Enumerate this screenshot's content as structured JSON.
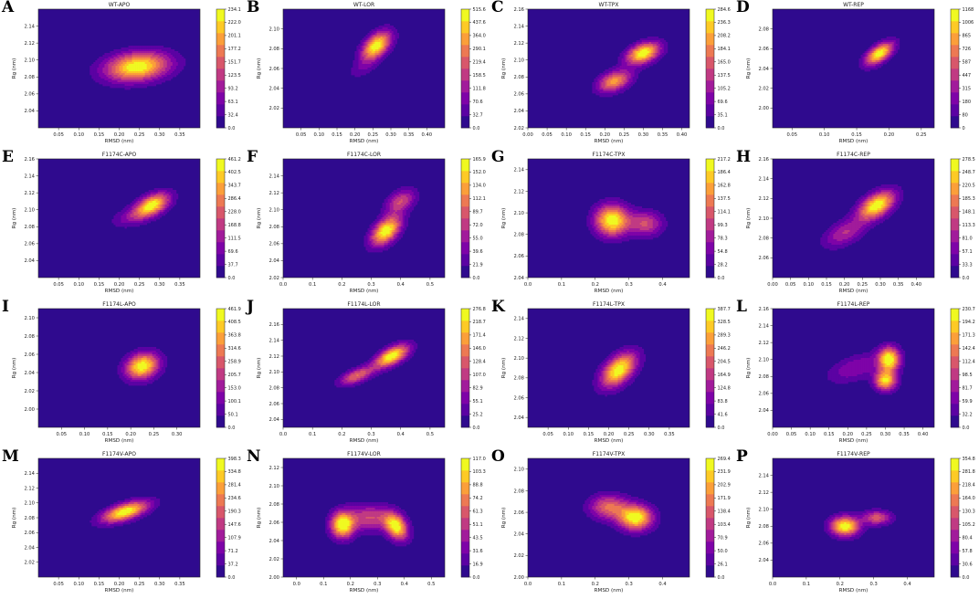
{
  "chart_data": [
    {
      "label": "A",
      "title": "WT-APO",
      "type": "heatmap",
      "xlabel": "RMSD (nm)",
      "ylabel": "Rg (nm)",
      "xlim": [
        0.0,
        0.4
      ],
      "ylim": [
        2.02,
        2.16
      ],
      "xticks": [
        "0.05",
        "0.10",
        "0.15",
        "0.20",
        "0.25",
        "0.30",
        "0.35"
      ],
      "yticks": [
        "2.04",
        "2.06",
        "2.08",
        "2.10",
        "2.12",
        "2.14"
      ],
      "colorbar": [
        "0.0",
        "32.4",
        "63.1",
        "93.2",
        "123.5",
        "151.7",
        "177.2",
        "201.1",
        "222.0",
        "234.1"
      ],
      "peaks": [
        {
          "x": 0.245,
          "y": 2.092,
          "sx": 0.055,
          "sy": 0.012,
          "h": 1.0,
          "r": 0.2
        }
      ]
    },
    {
      "label": "B",
      "title": "WT-LOR",
      "type": "heatmap",
      "xlabel": "RMSD (nm)",
      "ylabel": "Rg (nm)",
      "xlim": [
        0.0,
        0.45
      ],
      "ylim": [
        2.0,
        2.12
      ],
      "xticks": [
        "0.05",
        "0.10",
        "0.15",
        "0.20",
        "0.25",
        "0.30",
        "0.35",
        "0.40"
      ],
      "yticks": [
        "2.02",
        "2.04",
        "2.06",
        "2.08",
        "2.10"
      ],
      "colorbar": [
        "0.0",
        "32.7",
        "70.6",
        "111.8",
        "158.5",
        "219.4",
        "290.1",
        "364.0",
        "437.6",
        "515.6"
      ],
      "peaks": [
        {
          "x": 0.26,
          "y": 2.083,
          "sx": 0.028,
          "sy": 0.01,
          "h": 1.0,
          "r": 0.5
        },
        {
          "x": 0.22,
          "y": 2.06,
          "sx": 0.03,
          "sy": 0.008,
          "h": 0.15,
          "r": 0.5
        }
      ]
    },
    {
      "label": "C",
      "title": "WT-TPX",
      "type": "heatmap",
      "xlabel": "RMSD (nm)",
      "ylabel": "Rg (nm)",
      "xlim": [
        0.0,
        0.42
      ],
      "ylim": [
        2.02,
        2.16
      ],
      "xticks": [
        "0.00",
        "0.05",
        "0.10",
        "0.15",
        "0.20",
        "0.25",
        "0.30",
        "0.35",
        "0.40"
      ],
      "yticks": [
        "2.02",
        "2.04",
        "2.06",
        "2.08",
        "2.10",
        "2.12",
        "2.14",
        "2.16"
      ],
      "colorbar": [
        "0.0",
        "35.1",
        "69.6",
        "105.2",
        "137.5",
        "165.0",
        "184.1",
        "208.2",
        "236.3",
        "284.6"
      ],
      "peaks": [
        {
          "x": 0.3,
          "y": 2.108,
          "sx": 0.03,
          "sy": 0.009,
          "h": 1.0,
          "r": 0.4
        },
        {
          "x": 0.225,
          "y": 2.075,
          "sx": 0.03,
          "sy": 0.009,
          "h": 0.75,
          "r": 0.4
        }
      ]
    },
    {
      "label": "D",
      "title": "WT-REP",
      "type": "heatmap",
      "xlabel": "RMSD (nm)",
      "ylabel": "Rg (nm)",
      "xlim": [
        0.02,
        0.27
      ],
      "ylim": [
        1.98,
        2.1
      ],
      "xticks": [
        "0.05",
        "0.10",
        "0.15",
        "0.20",
        "0.25"
      ],
      "yticks": [
        "2.00",
        "2.02",
        "2.04",
        "2.06",
        "2.08"
      ],
      "colorbar": [
        "0",
        "80",
        "180",
        "315",
        "447",
        "587",
        "726",
        "865",
        "1006",
        "1168"
      ],
      "peaks": [
        {
          "x": 0.185,
          "y": 2.055,
          "sx": 0.015,
          "sy": 0.008,
          "h": 1.0,
          "r": 0.6
        }
      ]
    },
    {
      "label": "E",
      "title": "F1174C-APO",
      "type": "heatmap",
      "xlabel": "RMSD (nm)",
      "ylabel": "Rg (nm)",
      "xlim": [
        0.0,
        0.4
      ],
      "ylim": [
        2.02,
        2.16
      ],
      "xticks": [
        "0.05",
        "0.10",
        "0.15",
        "0.20",
        "0.25",
        "0.30",
        "0.35"
      ],
      "yticks": [
        "2.04",
        "2.06",
        "2.08",
        "2.10",
        "2.12",
        "2.14",
        "2.16"
      ],
      "colorbar": [
        "0.0",
        "37.7",
        "69.6",
        "111.5",
        "168.8",
        "228.0",
        "286.4",
        "343.7",
        "402.5",
        "461.2"
      ],
      "peaks": [
        {
          "x": 0.28,
          "y": 2.105,
          "sx": 0.03,
          "sy": 0.01,
          "h": 1.0,
          "r": 0.5
        },
        {
          "x": 0.22,
          "y": 2.09,
          "sx": 0.03,
          "sy": 0.008,
          "h": 0.2,
          "r": 0.3
        }
      ]
    },
    {
      "label": "F",
      "title": "F1174C-LOR",
      "type": "heatmap",
      "xlabel": "RMSD (nm)",
      "ylabel": "Rg (nm)",
      "xlim": [
        0.0,
        0.55
      ],
      "ylim": [
        2.02,
        2.16
      ],
      "xticks": [
        "0.0",
        "0.1",
        "0.2",
        "0.3",
        "0.4",
        "0.5"
      ],
      "yticks": [
        "2.02",
        "2.04",
        "2.06",
        "2.08",
        "2.10",
        "2.12",
        "2.14"
      ],
      "colorbar": [
        "0.0",
        "21.9",
        "39.6",
        "55.0",
        "72.0",
        "89.7",
        "112.1",
        "134.0",
        "152.0",
        "165.9"
      ],
      "peaks": [
        {
          "x": 0.35,
          "y": 2.075,
          "sx": 0.035,
          "sy": 0.012,
          "h": 1.0,
          "r": 0.5
        },
        {
          "x": 0.4,
          "y": 2.11,
          "sx": 0.035,
          "sy": 0.01,
          "h": 0.5,
          "r": 0.4
        }
      ]
    },
    {
      "label": "G",
      "title": "F1174C-TPX",
      "type": "heatmap",
      "xlabel": "RMSD (nm)",
      "ylabel": "Rg (nm)",
      "xlim": [
        0.0,
        0.48
      ],
      "ylim": [
        2.04,
        2.15
      ],
      "xticks": [
        "0.0",
        "0.1",
        "0.2",
        "0.3",
        "0.4"
      ],
      "yticks": [
        "2.04",
        "2.06",
        "2.08",
        "2.10",
        "2.12",
        "2.14"
      ],
      "colorbar": [
        "0.0",
        "28.2",
        "54.8",
        "78.3",
        "99.3",
        "114.1",
        "137.5",
        "162.8",
        "186.4",
        "217.2"
      ],
      "peaks": [
        {
          "x": 0.25,
          "y": 2.093,
          "sx": 0.035,
          "sy": 0.01,
          "h": 1.0,
          "r": 0.0
        },
        {
          "x": 0.35,
          "y": 2.09,
          "sx": 0.035,
          "sy": 0.008,
          "h": 0.5,
          "r": 0.0
        }
      ]
    },
    {
      "label": "H",
      "title": "F1174C-REP",
      "type": "heatmap",
      "xlabel": "RMSD (nm)",
      "ylabel": "Rg (nm)",
      "xlim": [
        0.0,
        0.45
      ],
      "ylim": [
        2.04,
        2.16
      ],
      "xticks": [
        "0.00",
        "0.05",
        "0.10",
        "0.15",
        "0.20",
        "0.25",
        "0.30",
        "0.35",
        "0.40"
      ],
      "yticks": [
        "2.06",
        "2.08",
        "2.10",
        "2.12",
        "2.14",
        "2.16"
      ],
      "colorbar": [
        "0.0",
        "33.3",
        "57.1",
        "81.0",
        "113.3",
        "148.1",
        "185.3",
        "220.5",
        "248.7",
        "278.5"
      ],
      "peaks": [
        {
          "x": 0.29,
          "y": 2.113,
          "sx": 0.035,
          "sy": 0.01,
          "h": 1.0,
          "r": 0.5
        },
        {
          "x": 0.2,
          "y": 2.085,
          "sx": 0.04,
          "sy": 0.01,
          "h": 0.4,
          "r": 0.5
        }
      ]
    },
    {
      "label": "I",
      "title": "F1174L-APO",
      "type": "heatmap",
      "xlabel": "RMSD (nm)",
      "ylabel": "Rg (nm)",
      "xlim": [
        0.0,
        0.35
      ],
      "ylim": [
        1.98,
        2.11
      ],
      "xticks": [
        "0.05",
        "0.10",
        "0.15",
        "0.20",
        "0.25",
        "0.30"
      ],
      "yticks": [
        "2.00",
        "2.02",
        "2.04",
        "2.06",
        "2.08",
        "2.10"
      ],
      "colorbar": [
        "0.0",
        "50.1",
        "100.1",
        "153.0",
        "205.7",
        "258.9",
        "314.6",
        "363.8",
        "408.5",
        "461.9"
      ],
      "peaks": [
        {
          "x": 0.225,
          "y": 2.047,
          "sx": 0.025,
          "sy": 0.01,
          "h": 1.0,
          "r": 0.2
        }
      ]
    },
    {
      "label": "J",
      "title": "F1174L-LOR",
      "type": "heatmap",
      "xlabel": "RMSD (nm)",
      "ylabel": "Rg (nm)",
      "xlim": [
        0.0,
        0.55
      ],
      "ylim": [
        2.03,
        2.18
      ],
      "xticks": [
        "0.0",
        "0.1",
        "0.2",
        "0.3",
        "0.4",
        "0.5"
      ],
      "yticks": [
        "2.04",
        "2.06",
        "2.08",
        "2.10",
        "2.12",
        "2.14",
        "2.16"
      ],
      "colorbar": [
        "0.0",
        "25.2",
        "55.1",
        "82.9",
        "107.0",
        "128.4",
        "146.0",
        "171.4",
        "218.7",
        "276.8"
      ],
      "peaks": [
        {
          "x": 0.37,
          "y": 2.12,
          "sx": 0.04,
          "sy": 0.01,
          "h": 1.0,
          "r": 0.6
        },
        {
          "x": 0.25,
          "y": 2.095,
          "sx": 0.04,
          "sy": 0.008,
          "h": 0.6,
          "r": 0.6
        }
      ]
    },
    {
      "label": "K",
      "title": "F1174L-TPX",
      "type": "heatmap",
      "xlabel": "RMSD (nm)",
      "ylabel": "Rg (nm)",
      "xlim": [
        0.0,
        0.4
      ],
      "ylim": [
        2.03,
        2.15
      ],
      "xticks": [
        "0.05",
        "0.10",
        "0.15",
        "0.20",
        "0.25",
        "0.30",
        "0.35"
      ],
      "yticks": [
        "2.04",
        "2.06",
        "2.08",
        "2.10",
        "2.12",
        "2.14"
      ],
      "colorbar": [
        "0.0",
        "41.6",
        "83.8",
        "124.8",
        "164.9",
        "204.5",
        "246.2",
        "289.3",
        "328.5",
        "387.7"
      ],
      "peaks": [
        {
          "x": 0.225,
          "y": 2.088,
          "sx": 0.03,
          "sy": 0.012,
          "h": 1.0,
          "r": 0.5
        }
      ]
    },
    {
      "label": "L",
      "title": "F1174L-REP",
      "type": "heatmap",
      "xlabel": "RMSD (nm)",
      "ylabel": "Rg (nm)",
      "xlim": [
        0.0,
        0.43
      ],
      "ylim": [
        2.02,
        2.16
      ],
      "xticks": [
        "0.00",
        "0.05",
        "0.10",
        "0.15",
        "0.20",
        "0.25",
        "0.30",
        "0.35",
        "0.40"
      ],
      "yticks": [
        "2.04",
        "2.06",
        "2.08",
        "2.10",
        "2.12",
        "2.14",
        "2.16"
      ],
      "colorbar": [
        "0.0",
        "32.2",
        "59.9",
        "81.7",
        "98.5",
        "112.4",
        "142.4",
        "171.3",
        "194.2",
        "230.7"
      ],
      "peaks": [
        {
          "x": 0.31,
          "y": 2.1,
          "sx": 0.02,
          "sy": 0.01,
          "h": 1.0,
          "r": 0.0
        },
        {
          "x": 0.3,
          "y": 2.075,
          "sx": 0.02,
          "sy": 0.008,
          "h": 0.9,
          "r": 0.0
        },
        {
          "x": 0.22,
          "y": 2.09,
          "sx": 0.05,
          "sy": 0.012,
          "h": 0.3,
          "r": 0.5
        }
      ]
    },
    {
      "label": "M",
      "title": "F1174V-APO",
      "type": "heatmap",
      "xlabel": "RMSD (nm)",
      "ylabel": "Rg (nm)",
      "xlim": [
        0.0,
        0.4
      ],
      "ylim": [
        2.0,
        2.16
      ],
      "xticks": [
        "0.05",
        "0.10",
        "0.15",
        "0.20",
        "0.25",
        "0.30",
        "0.35"
      ],
      "yticks": [
        "2.02",
        "2.04",
        "2.06",
        "2.08",
        "2.10",
        "2.12",
        "2.14"
      ],
      "colorbar": [
        "0.0",
        "37.2",
        "71.2",
        "107.9",
        "147.6",
        "190.3",
        "234.6",
        "281.4",
        "334.8",
        "398.3"
      ],
      "peaks": [
        {
          "x": 0.215,
          "y": 2.088,
          "sx": 0.04,
          "sy": 0.01,
          "h": 1.0,
          "r": 0.6
        }
      ]
    },
    {
      "label": "N",
      "title": "F1174V-LOR",
      "type": "heatmap",
      "xlabel": "RMSD (nm)",
      "ylabel": "Rg (nm)",
      "xlim": [
        -0.05,
        0.55
      ],
      "ylim": [
        2.0,
        2.13
      ],
      "xticks": [
        "0.0",
        "0.1",
        "0.2",
        "0.3",
        "0.4",
        "0.5"
      ],
      "yticks": [
        "2.00",
        "2.02",
        "2.04",
        "2.06",
        "2.08",
        "2.10",
        "2.12"
      ],
      "colorbar": [
        "0.0",
        "16.9",
        "31.6",
        "43.5",
        "51.1",
        "61.3",
        "74.2",
        "88.8",
        "103.3",
        "117.0"
      ],
      "peaks": [
        {
          "x": 0.17,
          "y": 2.057,
          "sx": 0.03,
          "sy": 0.01,
          "h": 1.0,
          "r": 0.0
        },
        {
          "x": 0.37,
          "y": 2.055,
          "sx": 0.03,
          "sy": 0.01,
          "h": 0.95,
          "r": -0.3
        },
        {
          "x": 0.27,
          "y": 2.065,
          "sx": 0.06,
          "sy": 0.01,
          "h": 0.5,
          "r": 0.0
        }
      ]
    },
    {
      "label": "O",
      "title": "F1174V-TPX",
      "type": "heatmap",
      "xlabel": "RMSD (nm)",
      "ylabel": "Rg (nm)",
      "xlim": [
        0.0,
        0.48
      ],
      "ylim": [
        2.0,
        2.11
      ],
      "xticks": [
        "0.0",
        "0.1",
        "0.2",
        "0.3",
        "0.4"
      ],
      "yticks": [
        "2.00",
        "2.02",
        "2.04",
        "2.06",
        "2.08",
        "2.10"
      ],
      "colorbar": [
        "0.0",
        "26.1",
        "50.0",
        "70.9",
        "103.4",
        "138.4",
        "171.9",
        "202.9",
        "231.9",
        "269.4"
      ],
      "peaks": [
        {
          "x": 0.32,
          "y": 2.055,
          "sx": 0.035,
          "sy": 0.008,
          "h": 1.0,
          "r": 0.0
        },
        {
          "x": 0.24,
          "y": 2.065,
          "sx": 0.04,
          "sy": 0.008,
          "h": 0.6,
          "r": 0.0
        }
      ]
    },
    {
      "label": "P",
      "title": "F1174V-REP",
      "type": "heatmap",
      "xlabel": "RMSD (nm)",
      "ylabel": "Rg (nm)",
      "xlim": [
        0.0,
        0.48
      ],
      "ylim": [
        2.02,
        2.16
      ],
      "xticks": [
        "0.0",
        "0.1",
        "0.2",
        "0.3",
        "0.4"
      ],
      "yticks": [
        "2.04",
        "2.06",
        "2.08",
        "2.10",
        "2.12",
        "2.14"
      ],
      "colorbar": [
        "0.0",
        "30.6",
        "57.8",
        "80.4",
        "105.2",
        "130.3",
        "164.0",
        "218.4",
        "281.8",
        "354.8"
      ],
      "peaks": [
        {
          "x": 0.215,
          "y": 2.08,
          "sx": 0.03,
          "sy": 0.008,
          "h": 1.0,
          "r": 0.0
        },
        {
          "x": 0.31,
          "y": 2.09,
          "sx": 0.03,
          "sy": 0.006,
          "h": 0.55,
          "r": 0.0
        }
      ]
    }
  ],
  "colors": {
    "background": "#2f0a8e",
    "levels": [
      "#2f0a8e",
      "#5b02a3",
      "#7e03a8",
      "#a11b9b",
      "#c03a83",
      "#d8576b",
      "#ed7953",
      "#fb9f3a",
      "#fdca26",
      "#f0f921"
    ]
  }
}
